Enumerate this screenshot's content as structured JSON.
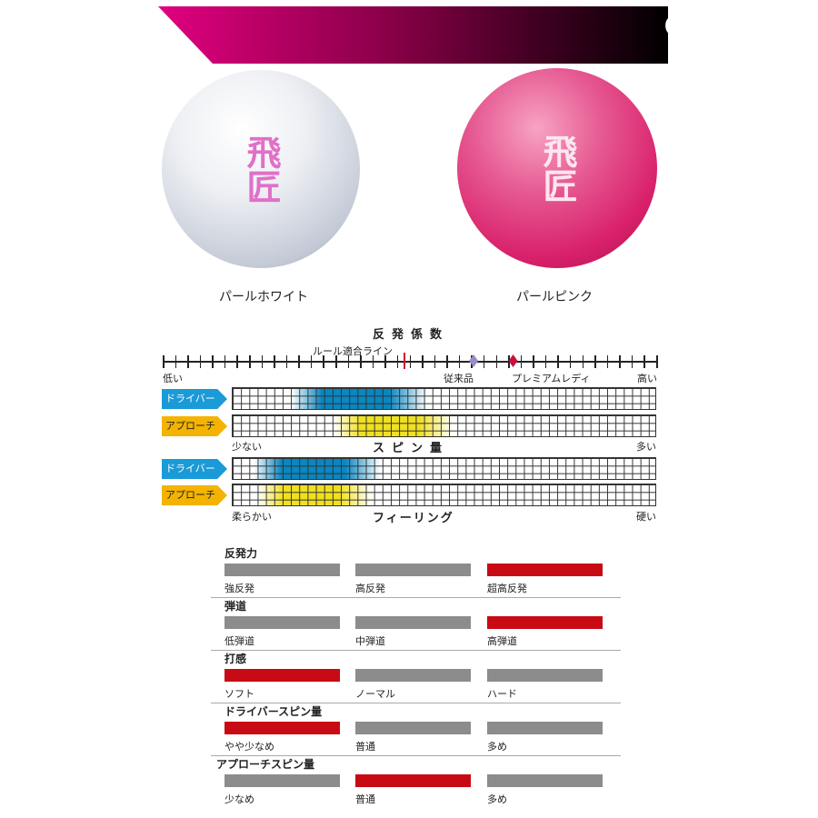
{
  "banner": {
    "title": "COLOR"
  },
  "balls": [
    {
      "label": "パールホワイト",
      "logo": "飛匠",
      "color": "#f0f2f6"
    },
    {
      "label": "パールピンク",
      "logo": "飛匠",
      "color": "#e0307a"
    }
  ],
  "restitution": {
    "title": "反発係数",
    "rule_line": "ルール適合ライン",
    "low": "低い",
    "high": "高い",
    "rule_line_position": 0.49,
    "markers": [
      {
        "label": "従来品",
        "position": 0.63,
        "color": "#9b8cc8"
      },
      {
        "label": "プレミアムレディ",
        "position": 0.71,
        "color": "#c8103c"
      }
    ]
  },
  "spin": {
    "title": "スピン量",
    "low": "少ない",
    "high": "多い",
    "rows": [
      {
        "tag": "ドライバー",
        "range": [
          0.14,
          0.46
        ],
        "color": "#0a86c0"
      },
      {
        "tag": "アプローチ",
        "range": [
          0.24,
          0.52
        ],
        "color": "#f0e020"
      }
    ]
  },
  "feeling": {
    "title": "フィーリング",
    "low": "柔らかい",
    "high": "硬い",
    "rows": [
      {
        "tag": "ドライバー",
        "range": [
          0.05,
          0.35
        ],
        "color": "#0a86c0"
      },
      {
        "tag": "アプローチ",
        "range": [
          0.06,
          0.33
        ],
        "color": "#f0e020"
      }
    ]
  },
  "specs": [
    {
      "title": "反発力",
      "options": [
        "強反発",
        "高反発",
        "超高反発"
      ],
      "selected": 2
    },
    {
      "title": "弾道",
      "options": [
        "低弾道",
        "中弾道",
        "高弾道"
      ],
      "selected": 2
    },
    {
      "title": "打感",
      "options": [
        "ソフト",
        "ノーマル",
        "ハード"
      ],
      "selected": 0
    },
    {
      "title": "ドライバースピン量",
      "options": [
        "やや少なめ",
        "普通",
        "多め"
      ],
      "selected": 0
    },
    {
      "title": "アプローチスピン量",
      "options": [
        "少なめ",
        "普通",
        "多め"
      ],
      "selected": 1
    }
  ],
  "colors": {
    "selected": "#c80a14",
    "unselected": "#8c8c8c"
  }
}
